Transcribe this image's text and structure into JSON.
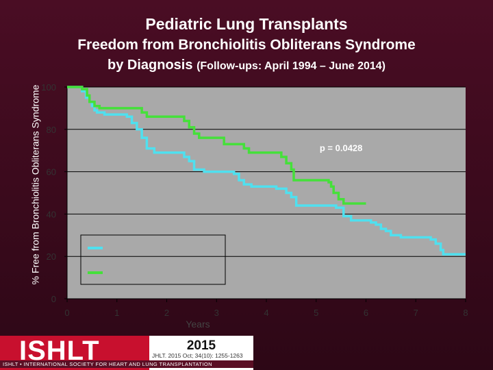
{
  "slide": {
    "title": "Pediatric Lung Transplants",
    "subtitle_line1": "Freedom from Bronchiolitis Obliterans Syndrome",
    "subtitle_line2": "by Diagnosis",
    "subtitle_followup": "(Follow-ups: April 1994 – June 2014)"
  },
  "footer": {
    "logo_text": "ISHLT",
    "logo_band_text": "ISHLT • INTERNATIONAL SOCIETY FOR HEART AND LUNG TRANSPLANTATION",
    "year": "2015",
    "citation": "JHLT. 2015 Oct; 34(10): 1255-1263"
  },
  "colors": {
    "plot_background": "#a9a9a9",
    "series_cyan": "#4fe0ef",
    "series_green": "#45e03a"
  },
  "chart_data": {
    "type": "line",
    "step": true,
    "xlabel": "Years",
    "ylabel": "% Free from Bronchiolitis Obliterans Syndrome",
    "xlim": [
      0,
      8
    ],
    "ylim": [
      0,
      100
    ],
    "x_ticks": [
      "0",
      "1",
      "2",
      "3",
      "4",
      "5",
      "6",
      "7",
      "8"
    ],
    "y_ticks": [
      "0",
      "20",
      "40",
      "60",
      "80",
      "100"
    ],
    "grid": "horizontal",
    "annotation": "p = 0.0428",
    "legend": {
      "placement": "bottom-left",
      "entries": [
        "",
        ""
      ]
    },
    "series": [
      {
        "x": [
          0,
          0.3,
          0.38,
          0.45,
          0.5,
          0.55,
          0.6,
          0.75,
          1.2,
          1.3,
          1.4,
          1.5,
          1.6,
          1.75,
          2.35,
          2.45,
          2.55,
          2.75,
          3.35,
          3.45,
          3.55,
          3.7,
          4.2,
          4.4,
          4.5,
          4.6,
          5.4,
          5.55,
          5.7,
          6.1,
          6.2,
          6.3,
          6.4,
          6.5,
          6.7,
          7.3,
          7.4,
          7.5,
          7.55,
          8
        ],
        "y": [
          100,
          98,
          95,
          93,
          91,
          89,
          88,
          87,
          86,
          83,
          80,
          76,
          71,
          69,
          67,
          65,
          61,
          60,
          59,
          56,
          54,
          53,
          52,
          50,
          48,
          44,
          43,
          39,
          37,
          36,
          35,
          33,
          32,
          30,
          29,
          28,
          26,
          23,
          21,
          21
        ]
      },
      {
        "x": [
          0,
          0.3,
          0.4,
          0.45,
          0.55,
          0.65,
          1.5,
          1.6,
          2.35,
          2.45,
          2.55,
          2.65,
          3.15,
          3.55,
          3.65,
          4.3,
          4.4,
          4.5,
          4.55,
          5.25,
          5.3,
          5.35,
          5.45,
          5.55,
          6
        ],
        "y": [
          100,
          99,
          96,
          93,
          91,
          90,
          88,
          86,
          84,
          81,
          78,
          76,
          73,
          71,
          69,
          67,
          64,
          61,
          56,
          55,
          53,
          50,
          47,
          45,
          45
        ]
      }
    ]
  }
}
